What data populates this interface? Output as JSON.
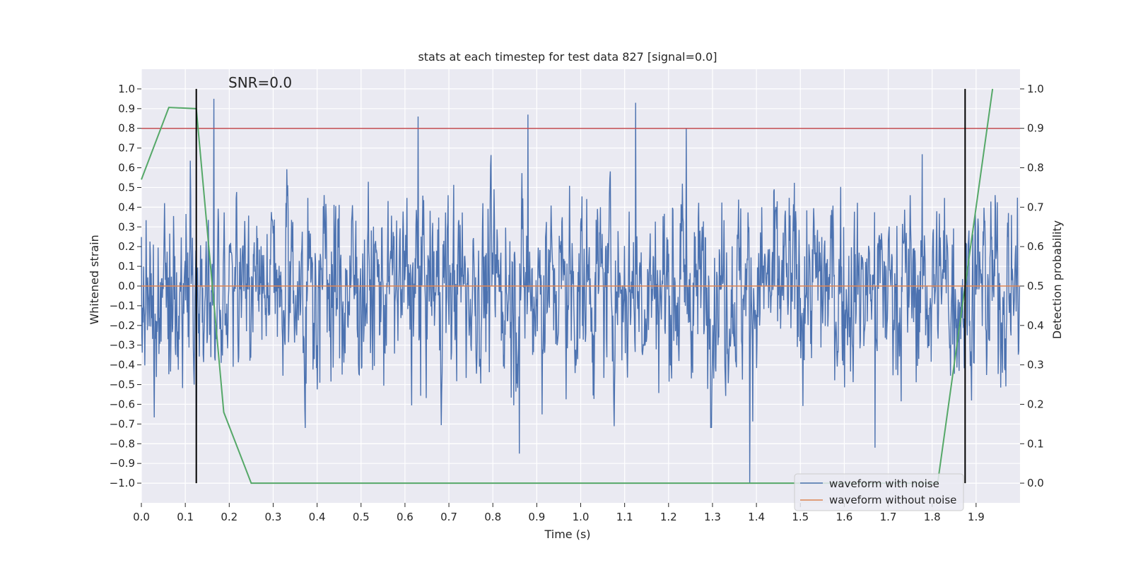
{
  "chart_data": {
    "type": "line",
    "title": "stats at each timestep for test data 827 [signal=0.0]",
    "xlabel": "Time (s)",
    "ylabel": "Whitened strain",
    "y2label": "Detection probability",
    "xlim": [
      0.0,
      2.0
    ],
    "ylim": [
      -1.1,
      1.1
    ],
    "y2lim": [
      -0.05,
      1.05
    ],
    "xticks": [
      "0.0",
      "0.1",
      "0.2",
      "0.3",
      "0.4",
      "0.5",
      "0.6",
      "0.7",
      "0.8",
      "0.9",
      "1.0",
      "1.1",
      "1.2",
      "1.3",
      "1.4",
      "1.5",
      "1.6",
      "1.7",
      "1.8",
      "1.9"
    ],
    "yticks": [
      "1.0",
      "0.9",
      "0.8",
      "0.7",
      "0.6",
      "0.5",
      "0.4",
      "0.3",
      "0.2",
      "0.1",
      "0.0",
      "-0.1",
      "-0.2",
      "-0.3",
      "-0.4",
      "-0.5",
      "-0.6",
      "-0.7",
      "-0.8",
      "-0.9",
      "-1.0"
    ],
    "y2ticks": [
      "1.0",
      "0.9",
      "0.8",
      "0.7",
      "0.6",
      "0.5",
      "0.4",
      "0.3",
      "0.2",
      "0.1",
      "0.0"
    ],
    "grid": true,
    "annotation": "SNR=0.0",
    "legend": {
      "location": "lower-right",
      "entries": [
        "waveform with noise",
        "waveform without noise"
      ]
    },
    "series": [
      {
        "name": "waveform with noise",
        "color": "#4c72b0",
        "description_samples": 2048,
        "peaks": [
          {
            "x": 0.125,
            "y": -0.88
          },
          {
            "x": 0.165,
            "y": 0.95
          },
          {
            "x": 0.63,
            "y": 0.86
          },
          {
            "x": 0.88,
            "y": 0.87
          },
          {
            "x": 1.125,
            "y": 0.93
          },
          {
            "x": 1.24,
            "y": 0.8
          },
          {
            "x": 1.385,
            "y": -1.0
          },
          {
            "x": 0.86,
            "y": -0.85
          },
          {
            "x": 1.67,
            "y": -0.82
          }
        ]
      },
      {
        "name": "waveform without noise",
        "color": "#dd8452",
        "x": [
          0.0,
          2.0
        ],
        "y": [
          0.0,
          0.0
        ]
      },
      {
        "color": "#55a868",
        "axis": "right",
        "x": [
          0.0,
          0.0625,
          0.125,
          0.1875,
          0.25,
          0.3125,
          1.8125,
          1.875,
          1.9375
        ],
        "y": [
          0.77,
          0.953,
          0.95,
          0.18,
          0.0,
          0.0,
          0.0,
          0.5,
          1.0
        ]
      }
    ],
    "hlines": [
      {
        "axis": "right",
        "y": 0.9,
        "color": "#c44e52"
      }
    ],
    "vlines": [
      {
        "x": 0.125,
        "y2range": [
          0.0,
          1.0
        ],
        "color": "#000000"
      },
      {
        "x": 1.875,
        "y2range": [
          0.0,
          1.0
        ],
        "color": "#000000"
      }
    ]
  }
}
